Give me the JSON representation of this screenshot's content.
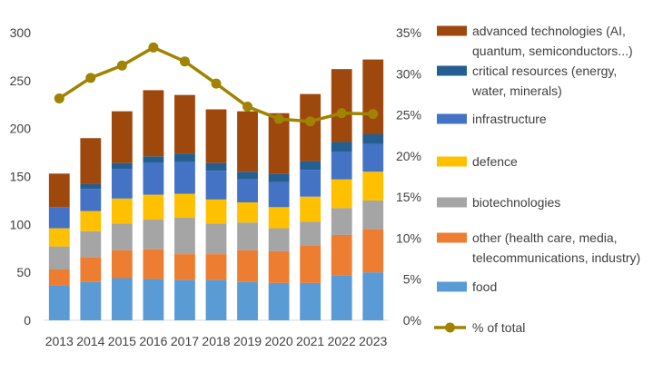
{
  "chart_data": {
    "type": "bar",
    "stacked": true,
    "categories": [
      "2013",
      "2014",
      "2015",
      "2016",
      "2017",
      "2018",
      "2019",
      "2020",
      "2021",
      "2022",
      "2023"
    ],
    "ylim": [
      0,
      300
    ],
    "y_ticks": [
      "0",
      "50",
      "100",
      "150",
      "200",
      "250",
      "300"
    ],
    "y2lim": [
      0,
      35
    ],
    "y2_ticks": [
      "0%",
      "5%",
      "10%",
      "15%",
      "20%",
      "25%",
      "30%",
      "35%"
    ],
    "grid": false,
    "legend_position": "right",
    "series": [
      {
        "name": "food",
        "color": "#5B9BD5",
        "values": [
          36,
          40,
          44,
          43,
          42,
          42,
          40,
          39,
          39,
          47,
          50
        ]
      },
      {
        "name": "other (health care, media, telecommunications, industry)",
        "color": "#ED7D31",
        "values": [
          17,
          26,
          29,
          31,
          27,
          27,
          33,
          33,
          39,
          42,
          45
        ]
      },
      {
        "name": "biotechnologies",
        "color": "#A5A5A5",
        "values": [
          24,
          27,
          28,
          31,
          38,
          32,
          29,
          24,
          25,
          28,
          30
        ]
      },
      {
        "name": "defence",
        "color": "#FFC000",
        "values": [
          19,
          21,
          26,
          26,
          25,
          25,
          21,
          22,
          26,
          30,
          30
        ]
      },
      {
        "name": "infrastructure",
        "color": "#4472C4",
        "values": [
          22,
          23,
          31,
          33,
          33,
          30,
          24,
          26,
          28,
          29,
          29
        ]
      },
      {
        "name": "critical resources (energy, water, minerals)",
        "color": "#255E91",
        "values": [
          0,
          5,
          6,
          7,
          9,
          8,
          8,
          9,
          9,
          10,
          10
        ]
      },
      {
        "name": "advanced technologies (AI, quantum, semiconductors...)",
        "color": "#9E480E",
        "values": [
          35,
          48,
          54,
          69,
          61,
          56,
          63,
          63,
          70,
          76,
          78
        ]
      }
    ],
    "line_series": {
      "name": "% of total",
      "color": "#A08300",
      "axis": "secondary",
      "values": [
        27.0,
        29.5,
        31.0,
        33.2,
        31.5,
        28.8,
        26.0,
        24.5,
        24.2,
        25.2,
        25.1
      ]
    },
    "legend": [
      {
        "key": "s6",
        "lines": [
          "advanced technologies (AI,",
          "quantum, semiconductors...)"
        ]
      },
      {
        "key": "s5",
        "lines": [
          "critical resources (energy,",
          "water, minerals)"
        ]
      },
      {
        "key": "s4",
        "lines": [
          "infrastructure"
        ]
      },
      {
        "key": "s3",
        "lines": [
          "defence"
        ]
      },
      {
        "key": "s2",
        "lines": [
          "biotechnologies"
        ]
      },
      {
        "key": "s1",
        "lines": [
          "other (health care, media,",
          "telecommunications, industry)"
        ]
      },
      {
        "key": "s0",
        "lines": [
          "food"
        ]
      },
      {
        "key": "line",
        "lines": [
          "% of total"
        ]
      }
    ]
  }
}
